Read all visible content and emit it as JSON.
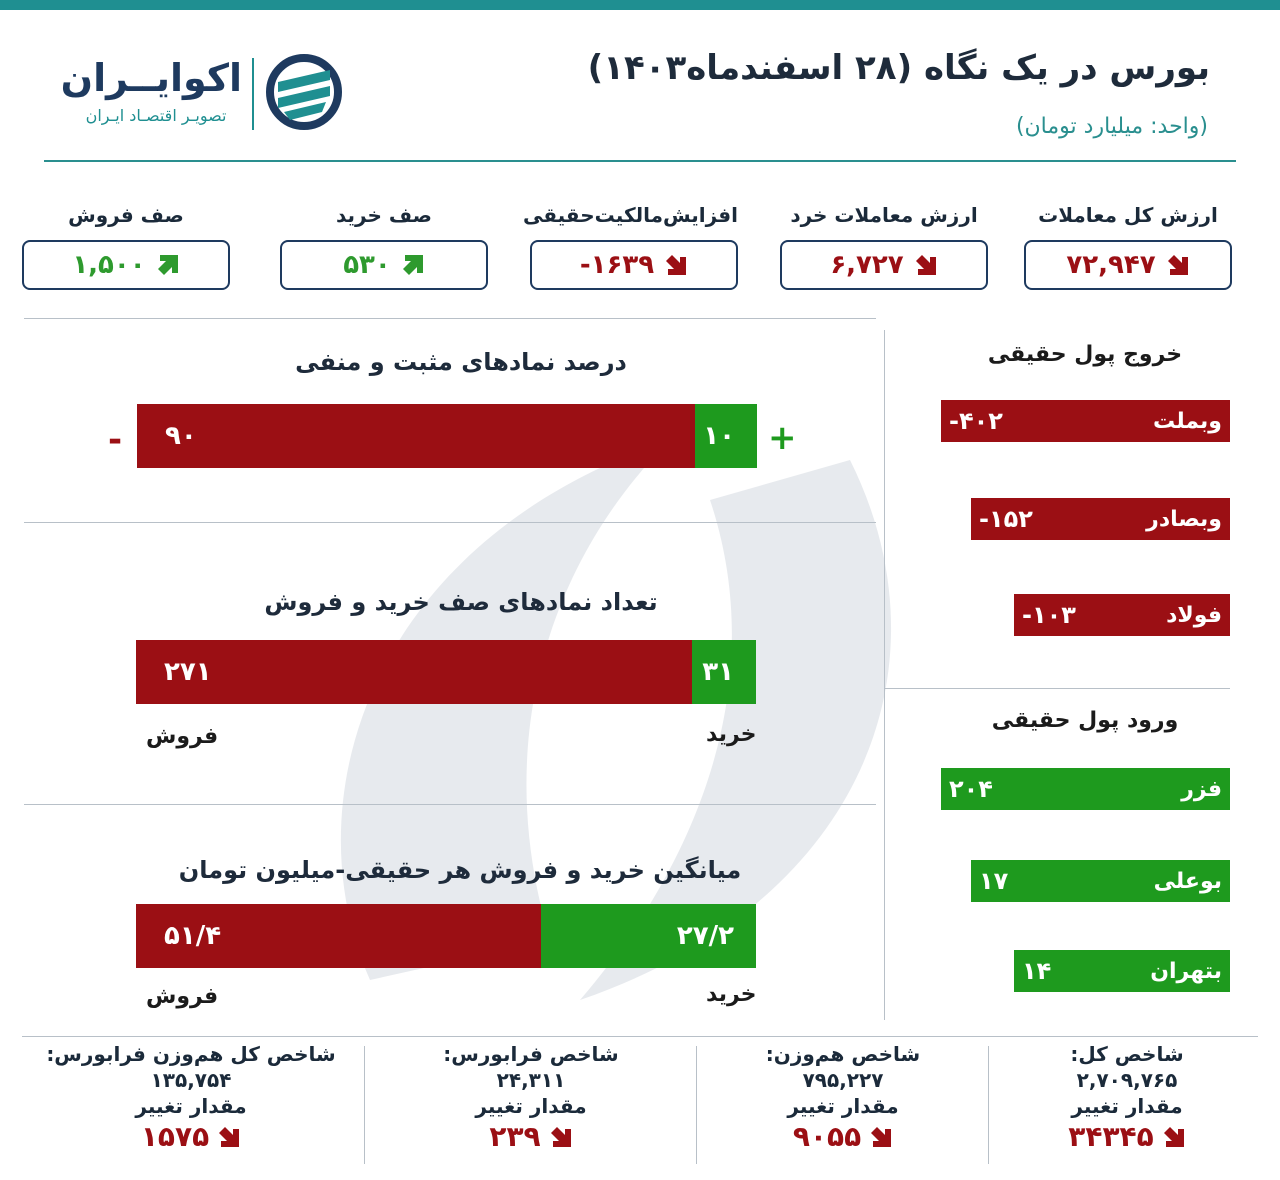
{
  "header": {
    "title": "بورس در یک نگاه (۲۸ اسفندماه۱۴۰۳)",
    "unit": "(واحد: میلیارد تومان)"
  },
  "logo": {
    "name": "اکوایــران",
    "tagline": "تصویـر اقتصـاد ایـران",
    "icon": "ecoiran-logo-icon"
  },
  "stats": [
    {
      "label": "ارزش کل معاملات",
      "value": "۷۲,۹۴۷",
      "direction": "down"
    },
    {
      "label": "ارزش معاملات خرد",
      "value": "۶,۷۲۷",
      "direction": "down"
    },
    {
      "label": "افزایش‌مالکیت‌حقیقی",
      "value": "-۱۶۳۹",
      "direction": "down"
    },
    {
      "label": "صف خرید",
      "value": "۵۳۰",
      "direction": "up"
    },
    {
      "label": "صف فروش",
      "value": "۱,۵۰۰",
      "direction": "up"
    }
  ],
  "positive_negative": {
    "title": "درصد نمادهای مثبت و منفی",
    "negative": "۹۰",
    "positive": "۱۰",
    "negative_share": 0.9,
    "minus_sign": "-",
    "plus_sign": "+"
  },
  "queues": {
    "title": "تعداد نمادهای صف خرید و فروش",
    "sell": "۲۷۱",
    "buy": "۳۱",
    "sell_share": 0.897,
    "sell_label": "فروش",
    "buy_label": "خرید"
  },
  "average": {
    "title": "میانگین خرید و فروش هر حقیقی-میلیون تومان",
    "sell": "۵۱/۴",
    "buy": "۲۷/۲",
    "sell_share": 0.654,
    "sell_label": "فروش",
    "buy_label": "خرید"
  },
  "outflow": {
    "title": "خروج پول حقیقی",
    "items": [
      {
        "name": "وبملت",
        "value": "-۴۰۲"
      },
      {
        "name": "وبصادر",
        "value": "-۱۵۲"
      },
      {
        "name": "فولاد",
        "value": "-۱۰۳"
      }
    ]
  },
  "inflow": {
    "title": "ورود پول حقیقی",
    "items": [
      {
        "name": "فزر",
        "value": "۲۰۴"
      },
      {
        "name": "بوعلی",
        "value": "۱۷"
      },
      {
        "name": "بتهران",
        "value": "۱۴"
      }
    ]
  },
  "indices": [
    {
      "name": "شاخص کل:",
      "value": "۲,۷۰۹,۷۶۵",
      "change_label": "مقدار تغییر",
      "change": "۳۴۳۴۵",
      "direction": "down"
    },
    {
      "name": "شاخص هم‌وزن:",
      "value": "۷۹۵,۲۲۷",
      "change_label": "مقدار تغییر",
      "change": "۹۰۵۵",
      "direction": "down"
    },
    {
      "name": "شاخص فرابورس:",
      "value": "۲۴,۳۱۱",
      "change_label": "مقدار تغییر",
      "change": "۲۳۹",
      "direction": "down"
    },
    {
      "name": "شاخص کل هم‌وزن فرابورس:",
      "value": "۱۳۵,۷۵۴",
      "change_label": "مقدار تغییر",
      "change": "۱۵۷۵",
      "direction": "down"
    }
  ],
  "colors": {
    "accent": "#1f8f91",
    "navy": "#1e3a5f",
    "red": "#9b0f14",
    "green": "#1e9a1e"
  }
}
